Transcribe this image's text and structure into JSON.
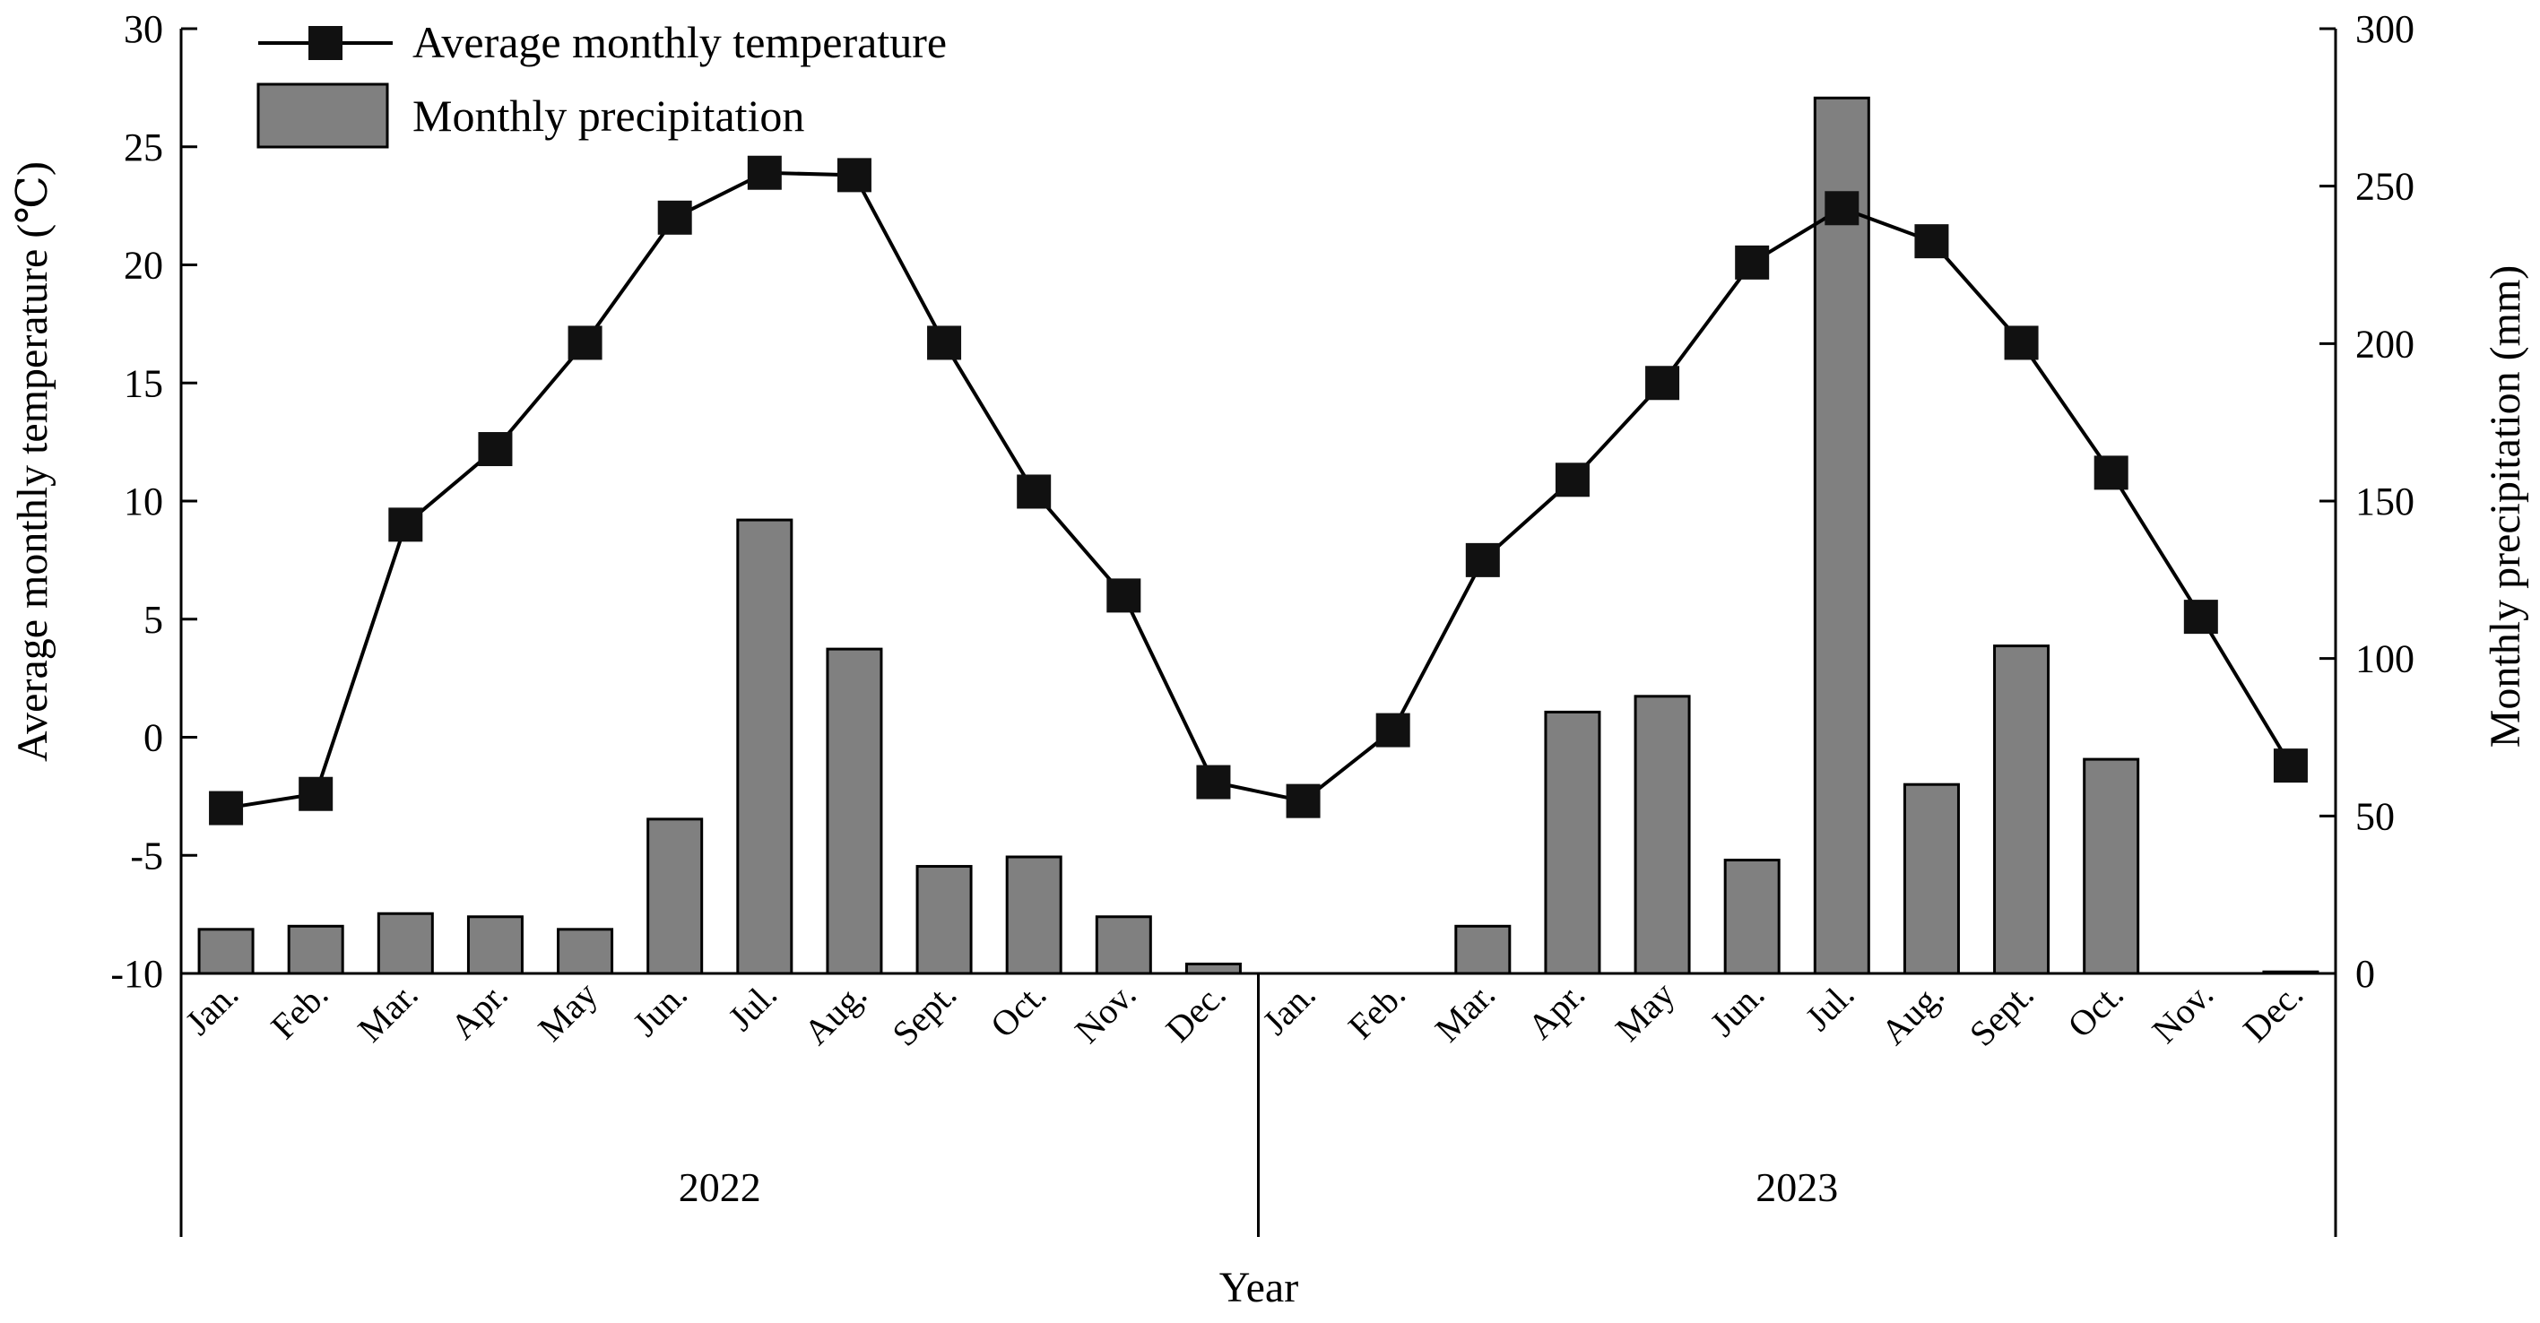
{
  "chart_data": {
    "type": "bar+line",
    "title": "",
    "xlabel": "Year",
    "ylabel_left": "Average monthly temperature (℃)",
    "ylabel_right": "Monthly precipitation (mm)",
    "ylim_left": [
      -10,
      30
    ],
    "ylim_right": [
      0,
      300
    ],
    "yticks_left": [
      -10,
      -5,
      0,
      5,
      10,
      15,
      20,
      25,
      30
    ],
    "yticks_right": [
      0,
      50,
      100,
      150,
      200,
      250,
      300
    ],
    "grid": false,
    "legend_position": "top-left",
    "years": [
      "2022",
      "2023"
    ],
    "months": [
      "Jan.",
      "Feb.",
      "Mar.",
      "Apr.",
      "May",
      "Jun.",
      "Jul.",
      "Aug.",
      "Sept.",
      "Oct.",
      "Nov.",
      "Dec."
    ],
    "series": [
      {
        "name": "Average monthly temperature",
        "type": "line",
        "axis": "left",
        "marker": "square",
        "color": "#000000",
        "values": [
          -3.0,
          -2.4,
          9.0,
          12.2,
          16.7,
          22.0,
          23.9,
          23.8,
          16.7,
          10.4,
          6.0,
          -1.9,
          -2.7,
          0.3,
          7.5,
          10.9,
          15.0,
          20.1,
          22.4,
          21.0,
          16.7,
          11.2,
          5.1,
          -1.2
        ]
      },
      {
        "name": "Monthly precipitation",
        "type": "bar",
        "axis": "right",
        "color": "#808080",
        "values": [
          14,
          15,
          19,
          18,
          14,
          49,
          144,
          103,
          34,
          37,
          18,
          3,
          0,
          0,
          15,
          83,
          88,
          36,
          278,
          60,
          104,
          68,
          0,
          0.5
        ]
      }
    ]
  }
}
